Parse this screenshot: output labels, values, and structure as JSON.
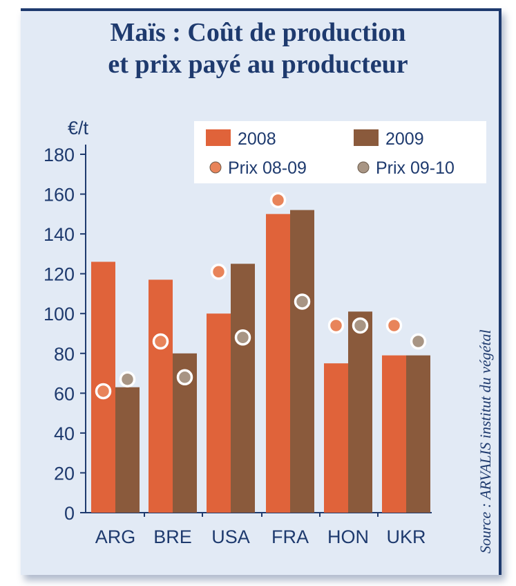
{
  "chart_data": {
    "type": "bar",
    "title_line1": "Maïs : Coût de production",
    "title_line2": "et prix payé au producteur",
    "ylabel": "€/t",
    "ylim": [
      0,
      180
    ],
    "yticks": [
      0,
      20,
      40,
      60,
      80,
      100,
      120,
      140,
      160,
      180
    ],
    "categories": [
      "ARG",
      "BRE",
      "USA",
      "FRA",
      "HON",
      "UKR"
    ],
    "series": [
      {
        "name": "2008",
        "kind": "bar",
        "color": "#e0633a",
        "values": [
          126,
          117,
          100,
          150,
          75,
          79
        ]
      },
      {
        "name": "2009",
        "kind": "bar",
        "color": "#8a5a3c",
        "values": [
          63,
          80,
          125,
          152,
          101,
          79
        ]
      }
    ],
    "points": [
      {
        "name": "Prix 08-09",
        "kind": "point",
        "color": "#e8845a",
        "values": [
          61,
          86,
          121,
          157,
          94,
          94
        ]
      },
      {
        "name": "Prix 09-10",
        "kind": "point",
        "color": "#a89584",
        "values": [
          67,
          68,
          88,
          106,
          94,
          86
        ]
      }
    ],
    "source": "Source : ARVALIS institut du végétal",
    "grid": false,
    "legend_position": "top-right"
  }
}
